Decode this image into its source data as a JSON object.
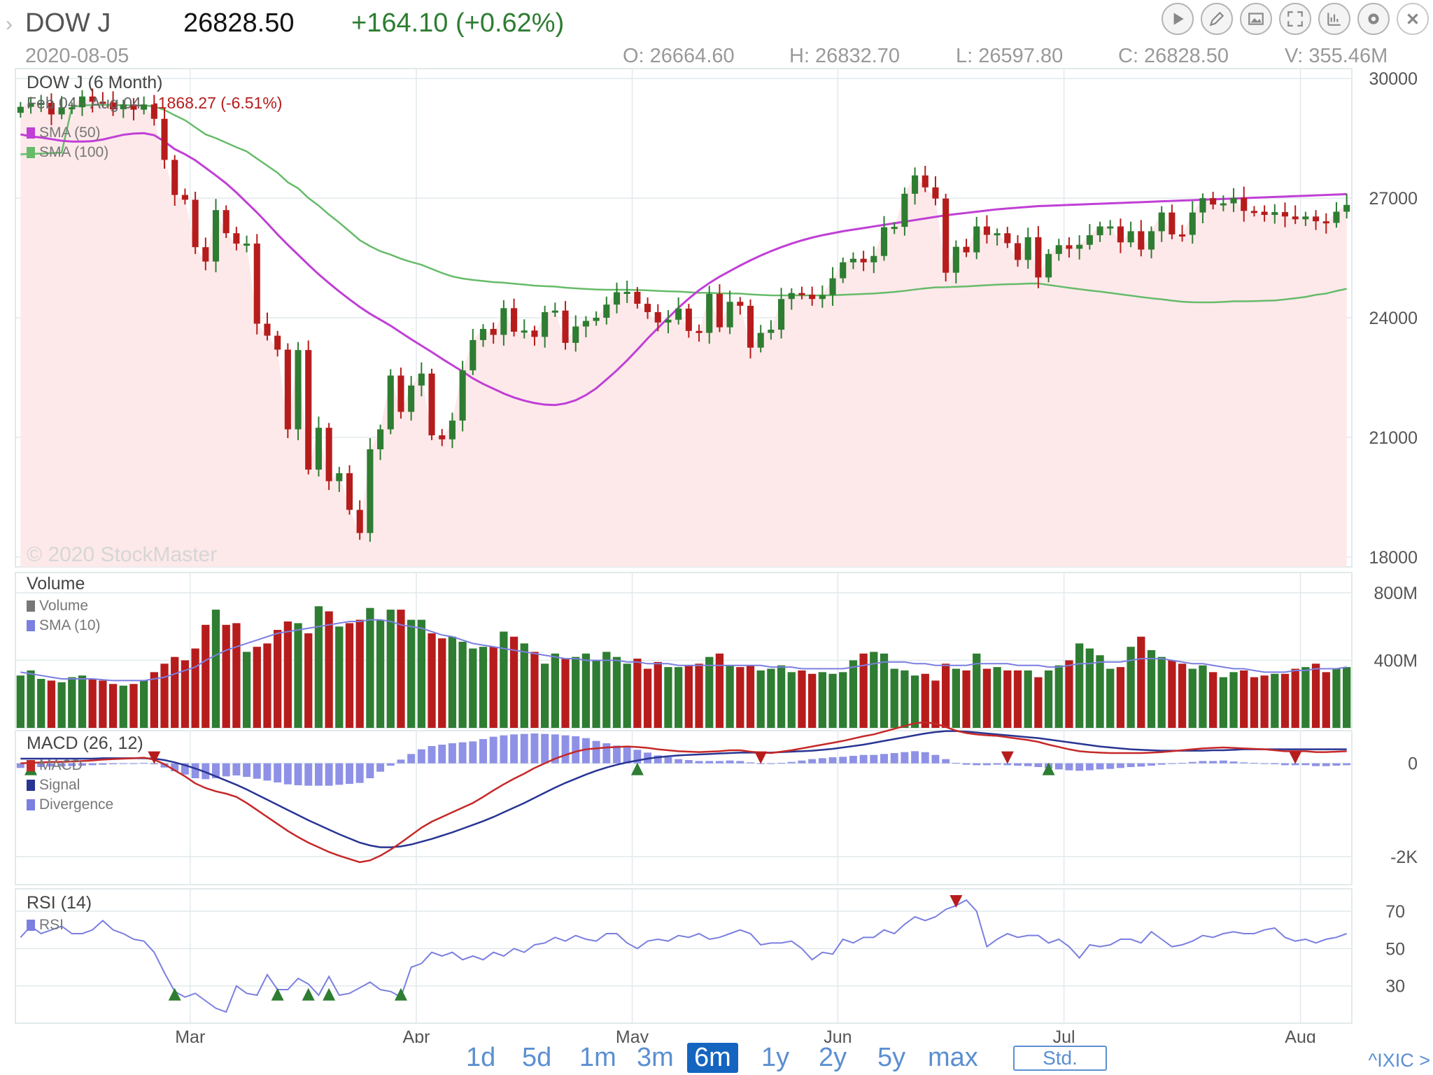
{
  "header": {
    "symbol": "DOW J",
    "price": "26828.50",
    "change": "+164.10 (+0.62%)",
    "date": "2020-08-05",
    "open": "O: 26664.60",
    "high": "H: 26832.70",
    "low": "L: 26597.80",
    "close": "C: 26828.50",
    "volume": "V: 355.46M"
  },
  "toolbar": {
    "buttons": [
      "play-icon",
      "pencil-icon",
      "image-icon",
      "fullscreen-icon",
      "chart-type-icon",
      "gear-icon",
      "close-icon"
    ]
  },
  "price_panel": {
    "title": "DOW J (6 Month)",
    "range": "Feb 04 - Aug 04",
    "range_change": "-1868.27 (-6.51%)",
    "legend": [
      {
        "label": "SMA (50)",
        "color": "#c03fd6"
      },
      {
        "label": "SMA (100)",
        "color": "#66bb6a"
      }
    ],
    "watermark": "© 2020 StockMaster"
  },
  "volume_panel": {
    "title": "Volume",
    "legend": [
      {
        "label": "Volume",
        "color": "#777777"
      },
      {
        "label": "SMA (10)",
        "color": "#7b7fe0"
      }
    ]
  },
  "macd_panel": {
    "title": "MACD (26, 12)",
    "legend": [
      {
        "label": "MACD",
        "color": "#c62828"
      },
      {
        "label": "Signal",
        "color": "#283593"
      },
      {
        "label": "Divergence",
        "color": "#7b7fe0"
      }
    ]
  },
  "rsi_panel": {
    "title": "RSI (14)",
    "legend": [
      {
        "label": "RSI",
        "color": "#7b7fe0"
      }
    ]
  },
  "timeframes": [
    "1d",
    "5d",
    "1m",
    "3m",
    "6m",
    "1y",
    "2y",
    "5y",
    "max"
  ],
  "selected_timeframe": "6m",
  "std_button": "Std.",
  "compare_link": "^IXIC >",
  "colors": {
    "up": "#2e7d32",
    "down": "#b71c1c",
    "sma50": "#c03fd6",
    "sma100": "#66bb6a",
    "accent": "#1565c0"
  },
  "chart_data": {
    "type": "candlestick",
    "title": "DOW J (6 Month)",
    "x_ticks": [
      "Mar",
      "Apr",
      "May",
      "Jun",
      "Jul",
      "Aug"
    ],
    "price_axis": {
      "ticks": [
        "30000",
        "27000",
        "24000",
        "21000",
        "18000"
      ],
      "ylim": [
        18000,
        30000
      ]
    },
    "volume_axis": {
      "ticks": [
        "800M",
        "400M"
      ],
      "unit": "M"
    },
    "macd_axis": {
      "ticks": [
        "0",
        "-2K"
      ]
    },
    "rsi_axis": {
      "ticks": [
        "70",
        "50",
        "30"
      ]
    },
    "start_date": "2020-02-04",
    "closes": [
      29290,
      29380,
      29390,
      29100,
      29280,
      29280,
      29550,
      29420,
      29400,
      29230,
      29350,
      29220,
      29350,
      28990,
      27960,
      27080,
      26960,
      25770,
      25410,
      26700,
      26120,
      25860,
      25860,
      23850,
      23550,
      23200,
      21200,
      23190,
      20190,
      21240,
      19900,
      20100,
      19180,
      18600,
      20700,
      21200,
      22550,
      21640,
      22300,
      22600,
      21050,
      20950,
      21420,
      22680,
      23440,
      23720,
      23570,
      24240,
      23650,
      23680,
      23520,
      24140,
      24180,
      23370,
      23780,
      23920,
      24000,
      24330,
      24640,
      24650,
      24350,
      24140,
      23880,
      23950,
      24230,
      23670,
      23620,
      24600,
      23760,
      24400,
      24300,
      23250,
      23620,
      23700,
      24470,
      24620,
      24580,
      24470,
      24570,
      24990,
      25390,
      25480,
      25390,
      25550,
      26270,
      26280,
      27110,
      27570,
      27270,
      26990,
      25130,
      25780,
      25640,
      26290,
      26080,
      26120,
      25870,
      25450,
      26020,
      25010,
      25600,
      25820,
      25730,
      25830,
      26070,
      26290,
      26290,
      25890,
      26170,
      25710,
      26170,
      26640,
      26090,
      26080,
      26640,
      27000,
      26840,
      26870,
      27010,
      26680,
      26660,
      26580,
      26650,
      26540,
      26470,
      26540,
      26420,
      26380,
      26660,
      26830
    ],
    "sma50": [
      28600,
      28550,
      28520,
      28480,
      28440,
      28420,
      28420,
      28430,
      28470,
      28530,
      28590,
      28620,
      28630,
      28580,
      28420,
      28230,
      28100,
      27950,
      27760,
      27570,
      27370,
      27140,
      26890,
      26640,
      26370,
      26090,
      25830,
      25580,
      25330,
      25090,
      24870,
      24660,
      24460,
      24270,
      24100,
      23950,
      23800,
      23630,
      23460,
      23300,
      23140,
      22970,
      22810,
      22650,
      22480,
      22340,
      22220,
      22100,
      22000,
      21920,
      21860,
      21820,
      21810,
      21850,
      21930,
      22060,
      22230,
      22450,
      22680,
      22930,
      23200,
      23480,
      23740,
      24000,
      24250,
      24480,
      24690,
      24870,
      25030,
      25170,
      25310,
      25440,
      25560,
      25670,
      25770,
      25860,
      25940,
      26010,
      26070,
      26120,
      26170,
      26210,
      26250,
      26290,
      26330,
      26370,
      26410,
      26450,
      26490,
      26530,
      26570,
      26600,
      26630,
      26660,
      26690,
      26720,
      26740,
      26760,
      26780,
      26800,
      26810,
      26820,
      26830,
      26840,
      26850,
      26860,
      26870,
      26880,
      26890,
      26900,
      26910,
      26920,
      26930,
      26940,
      26950,
      26960,
      26970,
      26980,
      26990,
      27000,
      27010,
      27020,
      27030,
      27040,
      27050,
      27060,
      27070,
      27080,
      27090,
      27100
    ],
    "note_sma_units": "SMA values as drawn on chart in price units",
    "volume_M": [
      310,
      340,
      290,
      280,
      270,
      300,
      310,
      290,
      280,
      260,
      250,
      260,
      280,
      330,
      380,
      420,
      400,
      470,
      610,
      700,
      610,
      620,
      450,
      480,
      500,
      580,
      630,
      620,
      560,
      720,
      690,
      600,
      620,
      640,
      710,
      640,
      700,
      700,
      640,
      640,
      560,
      530,
      540,
      510,
      470,
      480,
      480,
      570,
      540,
      500,
      450,
      380,
      440,
      410,
      420,
      440,
      400,
      450,
      420,
      380,
      410,
      350,
      390,
      360,
      360,
      370,
      380,
      420,
      440,
      370,
      360,
      370,
      340,
      350,
      370,
      330,
      340,
      320,
      330,
      320,
      330,
      400,
      440,
      450,
      440,
      350,
      340,
      310,
      320,
      280,
      380,
      350,
      340,
      440,
      350,
      360,
      340,
      340,
      340,
      300,
      340,
      370,
      400,
      500,
      470,
      430,
      350,
      360,
      480,
      540,
      460,
      420,
      400,
      380,
      350,
      370,
      330,
      300,
      330,
      340,
      300,
      310,
      320,
      320,
      350,
      360,
      380,
      330,
      350,
      360
    ],
    "volume_sma_M": [
      330,
      320,
      310,
      300,
      290,
      290,
      290,
      290,
      285,
      280,
      280,
      280,
      280,
      290,
      300,
      320,
      340,
      360,
      400,
      430,
      460,
      480,
      500,
      520,
      540,
      560,
      570,
      580,
      590,
      600,
      610,
      620,
      630,
      630,
      640,
      640,
      630,
      610,
      600,
      590,
      570,
      550,
      540,
      520,
      500,
      490,
      480,
      470,
      460,
      450,
      440,
      430,
      420,
      410,
      410,
      400,
      400,
      400,
      400,
      390,
      390,
      380,
      380,
      380,
      370,
      370,
      370,
      370,
      370,
      370,
      370,
      370,
      370,
      360,
      360,
      360,
      350,
      350,
      350,
      350,
      350,
      360,
      370,
      380,
      390,
      390,
      390,
      380,
      380,
      370,
      370,
      370,
      370,
      380,
      380,
      380,
      380,
      370,
      370,
      370,
      360,
      360,
      370,
      380,
      380,
      390,
      390,
      390,
      400,
      410,
      410,
      410,
      400,
      390,
      380,
      380,
      370,
      360,
      350,
      350,
      340,
      330,
      330,
      330,
      340,
      340,
      350,
      350,
      350,
      360
    ],
    "macd": [
      0,
      10,
      20,
      30,
      30,
      40,
      50,
      60,
      80,
      90,
      100,
      110,
      120,
      80,
      -20,
      -150,
      -280,
      -430,
      -530,
      -600,
      -650,
      -720,
      -850,
      -1000,
      -1150,
      -1300,
      -1450,
      -1580,
      -1700,
      -1800,
      -1900,
      -1980,
      -2050,
      -2120,
      -2080,
      -1980,
      -1850,
      -1700,
      -1540,
      -1380,
      -1250,
      -1150,
      -1050,
      -950,
      -850,
      -720,
      -580,
      -450,
      -330,
      -220,
      -100,
      0,
      100,
      180,
      250,
      300,
      320,
      340,
      350,
      360,
      350,
      330,
      300,
      280,
      260,
      250,
      240,
      250,
      260,
      280,
      280,
      250,
      230,
      220,
      250,
      280,
      320,
      360,
      400,
      440,
      480,
      530,
      580,
      620,
      680,
      740,
      800,
      860,
      880,
      850,
      780,
      700,
      650,
      620,
      600,
      590,
      560,
      530,
      500,
      460,
      400,
      350,
      300,
      260,
      240,
      230,
      220,
      220,
      220,
      220,
      230,
      240,
      260,
      280,
      300,
      320,
      330,
      340,
      330,
      320,
      310,
      300,
      280,
      260,
      260,
      260,
      240,
      240,
      250,
      260
    ],
    "signal": [
      100,
      100,
      100,
      100,
      100,
      100,
      100,
      100,
      110,
      110,
      110,
      110,
      110,
      100,
      70,
      20,
      -40,
      -110,
      -190,
      -280,
      -370,
      -460,
      -560,
      -670,
      -780,
      -890,
      -1000,
      -1110,
      -1220,
      -1320,
      -1420,
      -1520,
      -1610,
      -1700,
      -1760,
      -1800,
      -1800,
      -1780,
      -1740,
      -1680,
      -1620,
      -1550,
      -1480,
      -1400,
      -1320,
      -1240,
      -1150,
      -1050,
      -950,
      -850,
      -740,
      -630,
      -520,
      -420,
      -330,
      -240,
      -160,
      -90,
      -30,
      20,
      60,
      100,
      130,
      150,
      170,
      180,
      190,
      200,
      210,
      220,
      230,
      230,
      230,
      230,
      240,
      250,
      260,
      270,
      290,
      310,
      340,
      370,
      400,
      440,
      480,
      520,
      560,
      600,
      640,
      670,
      690,
      690,
      680,
      660,
      640,
      620,
      600,
      580,
      560,
      540,
      510,
      480,
      450,
      420,
      390,
      360,
      340,
      320,
      300,
      290,
      280,
      270,
      270,
      270,
      270,
      270,
      280,
      280,
      290,
      300,
      300,
      300,
      300,
      300,
      300,
      300,
      300,
      300,
      300,
      300
    ],
    "rsi": [
      56,
      62,
      58,
      60,
      62,
      58,
      58,
      60,
      65,
      60,
      58,
      55,
      54,
      48,
      37,
      27,
      24,
      26,
      22,
      18,
      16,
      30,
      26,
      25,
      36,
      28,
      28,
      34,
      31,
      25,
      35,
      25,
      26,
      29,
      32,
      28,
      27,
      24,
      40,
      42,
      48,
      46,
      48,
      44,
      46,
      44,
      48,
      46,
      50,
      48,
      52,
      53,
      56,
      54,
      57,
      55,
      54,
      58,
      58,
      53,
      50,
      54,
      55,
      54,
      57,
      56,
      58,
      55,
      56,
      58,
      60,
      58,
      52,
      53,
      53,
      54,
      50,
      44,
      48,
      47,
      55,
      53,
      56,
      56,
      60,
      58,
      63,
      67,
      65,
      67,
      71,
      73,
      76,
      70,
      51,
      55,
      58,
      56,
      57,
      57,
      53,
      55,
      51,
      45,
      52,
      51,
      52,
      55,
      55,
      53,
      59,
      55,
      51,
      52,
      54,
      57,
      56,
      58,
      59,
      58,
      58,
      60,
      61,
      56,
      54,
      55,
      53,
      55,
      56,
      58
    ],
    "buy_signals_macd": [
      1,
      60,
      100
    ],
    "sell_signals_macd": [
      13,
      72,
      96,
      124
    ],
    "rsi_buy_signals": [
      15,
      25,
      28,
      30,
      37
    ],
    "rsi_sell_signals": [
      91
    ]
  }
}
